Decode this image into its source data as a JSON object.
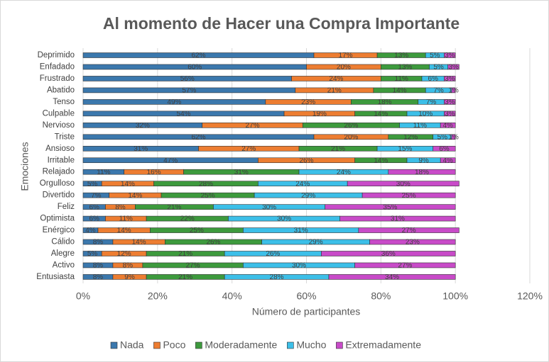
{
  "chart_data": {
    "type": "stacked_bar_horizontal",
    "title": "Al momento de Hacer una Compra Importante",
    "x_label": "Número de participantes",
    "y_label": "Emociones",
    "categories": [
      "Deprimido",
      "Enfadado",
      "Frustrado",
      "Abatido",
      "Tenso",
      "Culpable",
      "Nervioso",
      "Triste",
      "Ansioso",
      "Irritable",
      "Relajado",
      "Orgulloso",
      "Divertido",
      "Feliz",
      "Optimista",
      "Enérgico",
      "Cálido",
      "Alegre",
      "Activo",
      "Entusiasta"
    ],
    "series": [
      {
        "name": "Nada",
        "color": "#3b78ad",
        "values": [
          62,
          60,
          56,
          57,
          49,
          54,
          32,
          62,
          31,
          47,
          11,
          5,
          7,
          6,
          6,
          4,
          8,
          5,
          8,
          8
        ],
        "value_labels": [
          "62%",
          "60%",
          "56%",
          "57%",
          "49%",
          "54%",
          "32%",
          "62%",
          "31%",
          "47%",
          "11%",
          "5%",
          "7%",
          "6%",
          "6%",
          "4%",
          "8%",
          "5%",
          "8%",
          "8%"
        ]
      },
      {
        "name": "Poco",
        "color": "#ed7d31",
        "values": [
          17,
          20,
          24,
          21,
          23,
          19,
          27,
          20,
          27,
          26,
          16,
          14,
          14,
          8,
          11,
          14,
          14,
          12,
          8,
          9
        ],
        "value_labels": [
          "17%",
          "20%",
          "24%",
          "21%",
          "23%",
          "19%",
          "27%",
          "20%",
          "27%",
          "26%",
          "16%",
          "14%",
          "14%",
          "8%",
          "11%",
          "14%",
          "14%",
          "12%",
          "8%",
          "9%"
        ]
      },
      {
        "name": "Moderadamente",
        "color": "#3d9a3d",
        "values": [
          13,
          13,
          11,
          14,
          18,
          14,
          26,
          12,
          21,
          14,
          31,
          28,
          25,
          21,
          22,
          25,
          26,
          21,
          27,
          21
        ],
        "value_labels": [
          "13%",
          "13%",
          "11%",
          "14%",
          "18%",
          "14%",
          "26%",
          "12%",
          "21%",
          "14%",
          "31%",
          "28%",
          "25%",
          "21%",
          "22%",
          "25%",
          "26%",
          "21%",
          "27%",
          "21%"
        ]
      },
      {
        "name": "Mucho",
        "color": "#3cbfe8",
        "values": [
          5,
          5,
          6,
          7,
          7,
          10,
          11,
          5,
          15,
          9,
          24,
          24,
          29,
          30,
          30,
          31,
          29,
          26,
          30,
          28
        ],
        "value_labels": [
          "5%",
          "5%",
          "6%",
          "7%",
          "7%",
          "10%",
          "11%",
          "5%",
          "15%",
          "9%",
          "24%",
          "24%",
          "29%",
          "30%",
          "30%",
          "31%",
          "29%",
          "26%",
          "30%",
          "28%"
        ]
      },
      {
        "name": "Extremadamente",
        "color": "#c84bc8",
        "values": [
          3,
          3,
          3,
          1,
          3,
          3,
          4,
          1,
          6,
          4,
          18,
          30,
          25,
          35,
          31,
          27,
          23,
          36,
          27,
          34
        ],
        "value_labels": [
          "3%",
          "3%",
          "3%",
          "1%",
          "3%",
          "3%",
          "4%",
          "1%",
          "6%",
          "4%",
          "18%",
          "30%",
          "25%",
          "35%",
          "31%",
          "27%",
          "23%",
          "36%",
          "27%",
          "34%"
        ]
      }
    ],
    "xlim": [
      0,
      120
    ],
    "xticks": [
      {
        "value": 0,
        "label": "0%"
      },
      {
        "value": 20,
        "label": "20%"
      },
      {
        "value": 40,
        "label": "40%"
      },
      {
        "value": 60,
        "label": "60%"
      },
      {
        "value": 80,
        "label": "80%"
      },
      {
        "value": 100,
        "label": "100%"
      },
      {
        "value": 120,
        "label": "120%"
      }
    ],
    "grid": true,
    "legend": "bottom"
  }
}
